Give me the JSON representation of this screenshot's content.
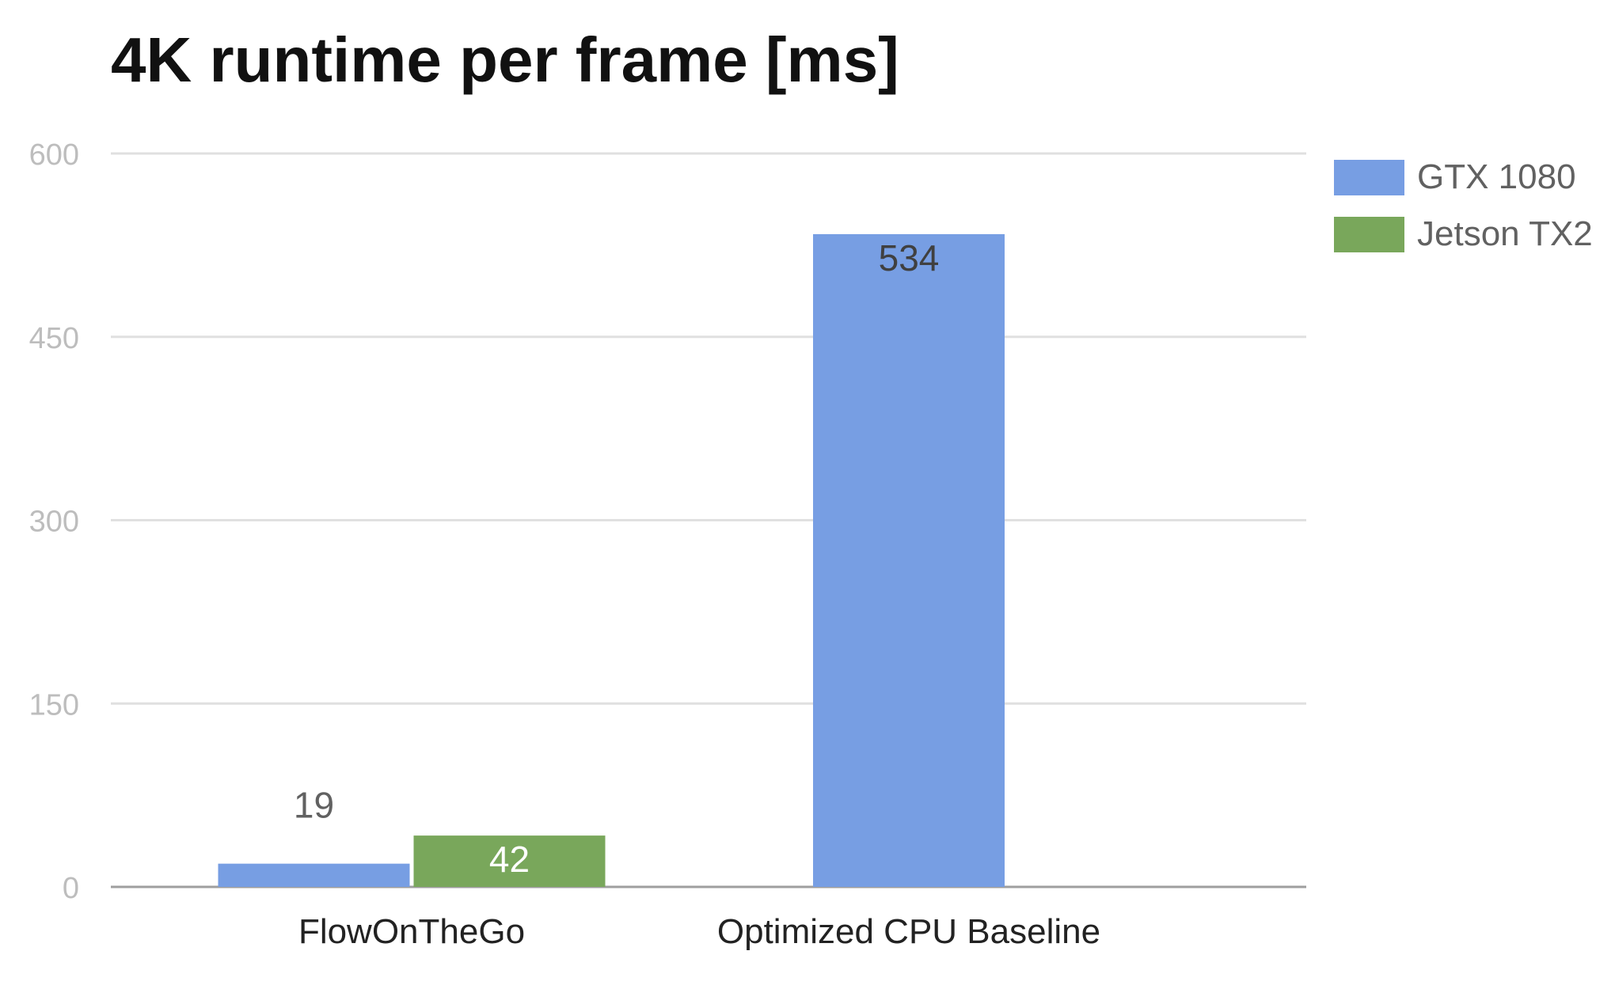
{
  "chart_data": {
    "type": "bar",
    "title": "4K runtime per frame [ms]",
    "categories": [
      "FlowOnTheGo",
      "Optimized CPU Baseline"
    ],
    "series": [
      {
        "name": "GTX 1080",
        "color": "#779ee3",
        "values": [
          19,
          534
        ],
        "labels": [
          "19",
          "534"
        ]
      },
      {
        "name": "Jetson TX2",
        "color": "#79a75b",
        "values": [
          42,
          null
        ],
        "labels": [
          "42",
          ""
        ]
      }
    ],
    "y_ticks": [
      "0",
      "150",
      "300",
      "450",
      "600"
    ],
    "ylim": [
      0,
      600
    ],
    "grid": true,
    "legend_position": "right",
    "xlabel": "",
    "ylabel": ""
  }
}
